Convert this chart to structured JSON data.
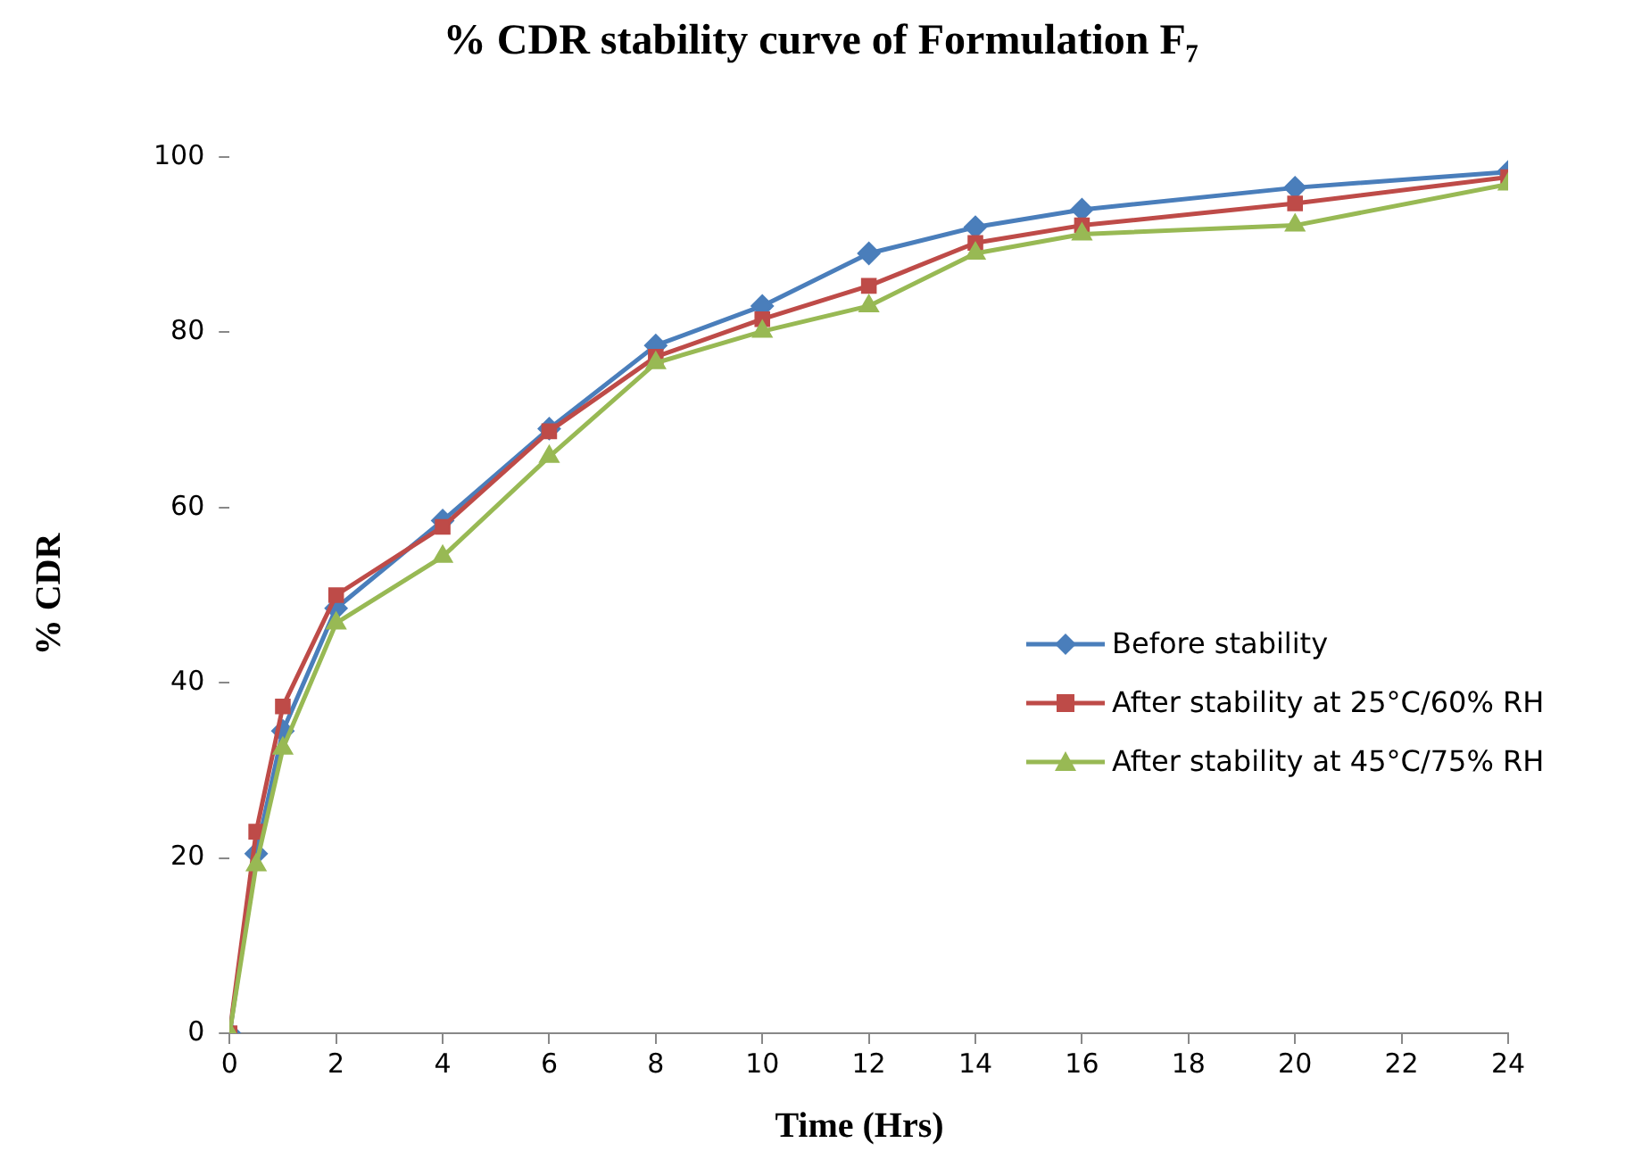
{
  "chart_data": {
    "type": "line",
    "title": "% CDR stability curve of Formulation F₇",
    "xlabel": "Time (Hrs)",
    "ylabel": "% CDR",
    "x": [
      0,
      0.5,
      1,
      2,
      4,
      6,
      8,
      10,
      12,
      14,
      16,
      20,
      24
    ],
    "series": [
      {
        "name": "Before stability",
        "color": "#4a7ebb",
        "marker": "diamond",
        "values": [
          0,
          20.5,
          34.5,
          48.5,
          58.5,
          69,
          78.5,
          83,
          89,
          92,
          94,
          96.5,
          98.3
        ]
      },
      {
        "name": "After stability at 25°C/60% RH",
        "color": "#be4b48",
        "marker": "square",
        "values": [
          0,
          23,
          37.3,
          50,
          57.8,
          68.7,
          77.2,
          81.5,
          85.3,
          90.2,
          92.2,
          94.7,
          97.7
        ]
      },
      {
        "name": "After stability at 45°C/75% RH",
        "color": "#98b954",
        "marker": "triangle",
        "values": [
          0,
          19.2,
          32.5,
          46.8,
          54.4,
          65.8,
          76.5,
          80.1,
          83,
          89,
          91.2,
          92.2,
          96.9
        ]
      }
    ],
    "xlim": [
      0,
      24
    ],
    "xticks": [
      0,
      2,
      4,
      6,
      8,
      10,
      12,
      14,
      16,
      18,
      20,
      22,
      24
    ],
    "ylim": [
      0,
      100
    ],
    "yticks": [
      0,
      20,
      40,
      60,
      80,
      100
    ],
    "grid": false,
    "legend": "right",
    "line_style": "solid"
  }
}
